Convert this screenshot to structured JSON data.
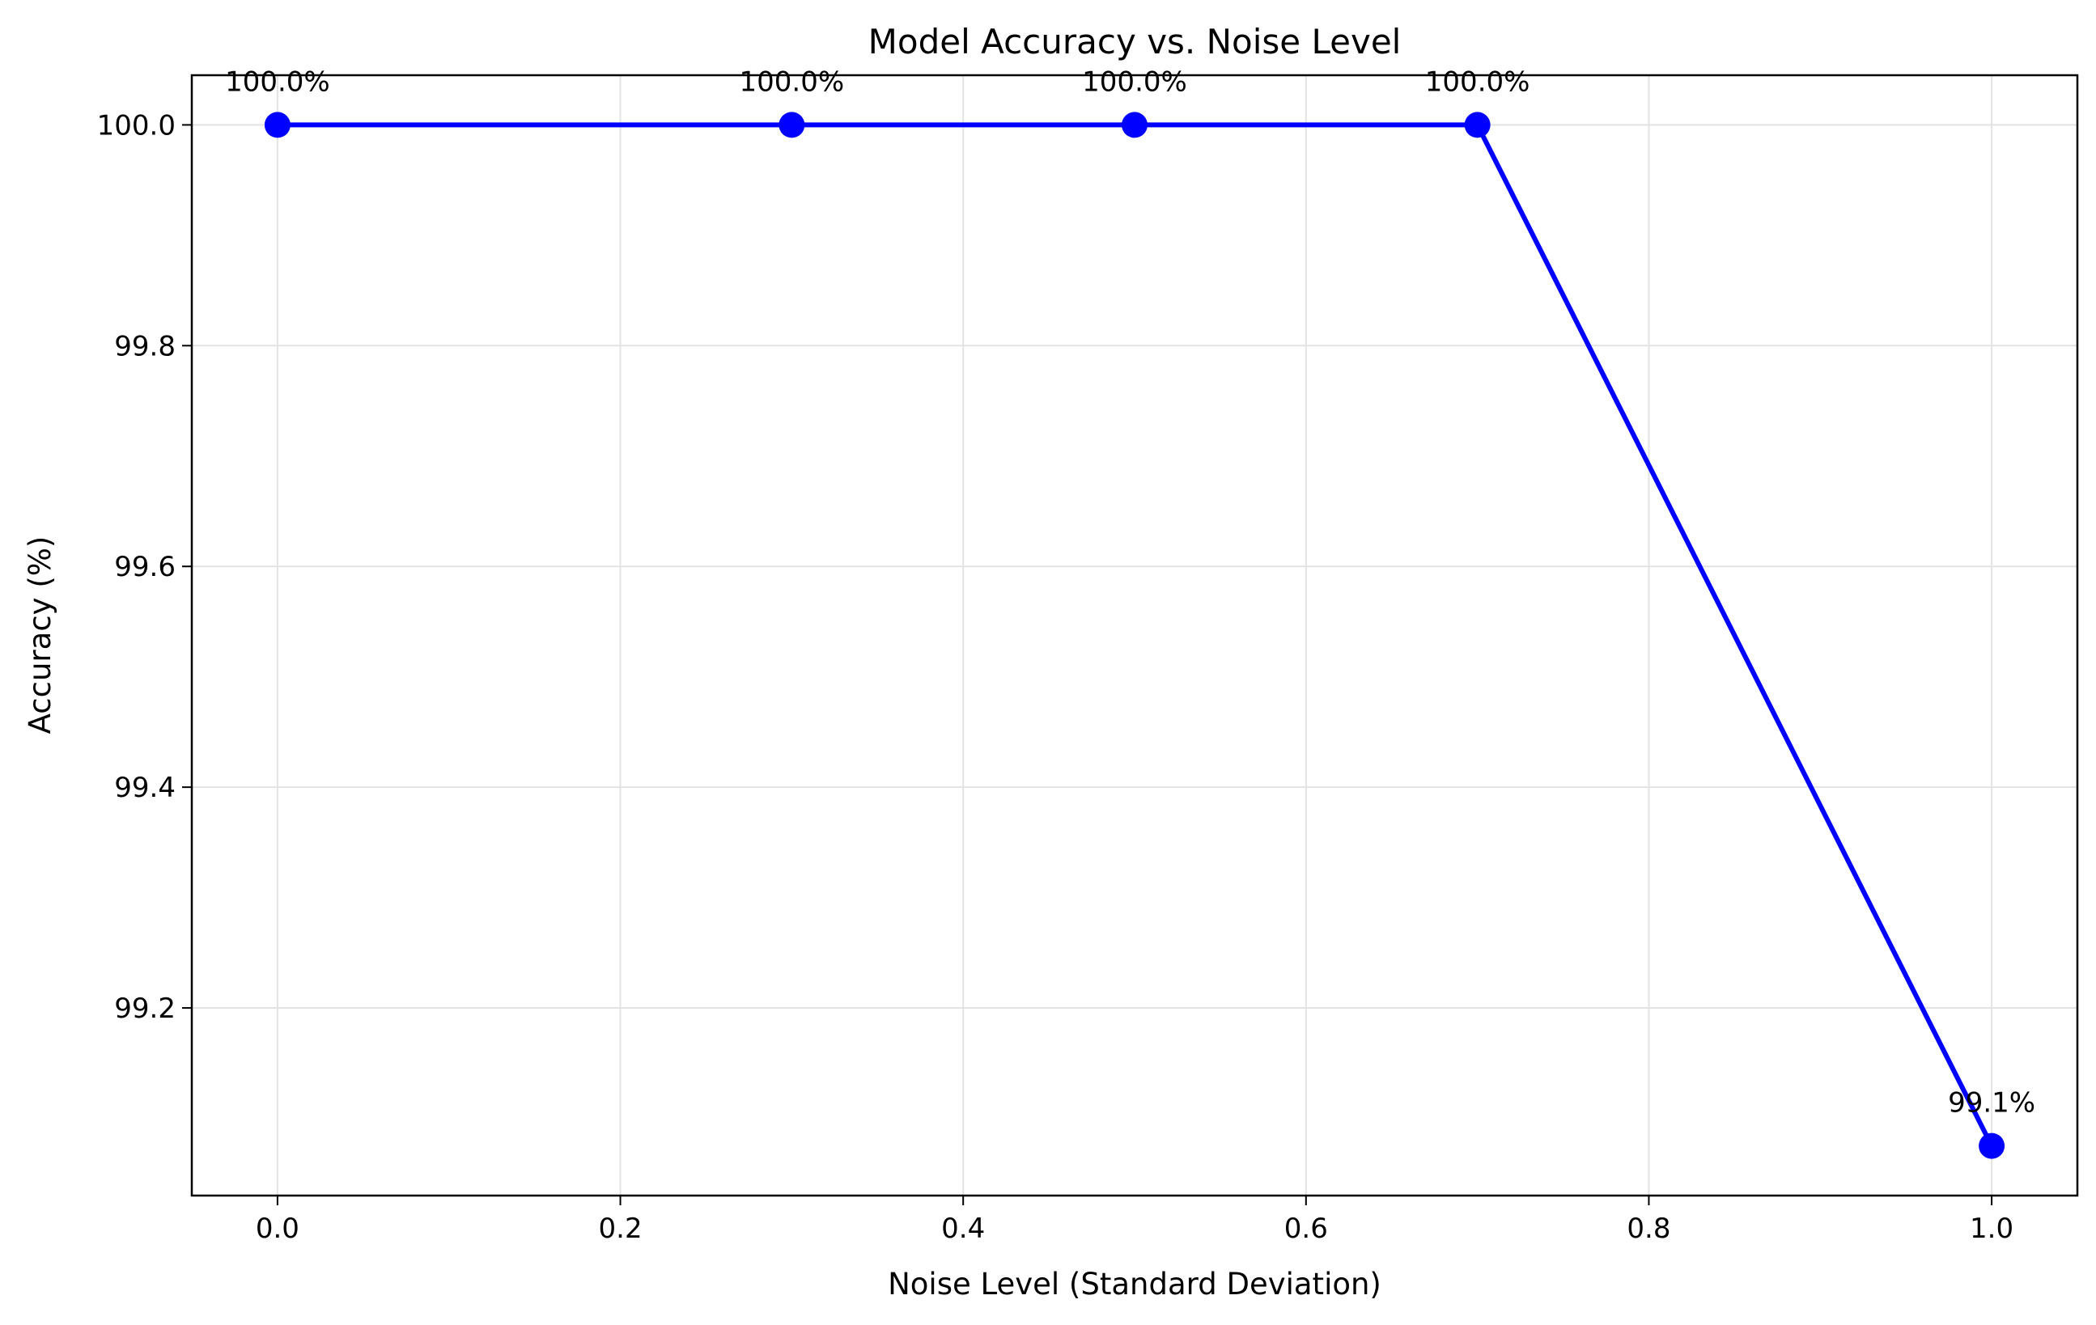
{
  "chart_data": {
    "type": "line",
    "title": "Model Accuracy vs. Noise Level",
    "xlabel": "Noise Level (Standard Deviation)",
    "ylabel": "Accuracy (%)",
    "xlim": [
      -0.05,
      1.05
    ],
    "ylim": [
      99.03,
      100.045
    ],
    "xticks": [
      0.0,
      0.2,
      0.4,
      0.6,
      0.8,
      1.0
    ],
    "xtick_labels": [
      "0.0",
      "0.2",
      "0.4",
      "0.6",
      "0.8",
      "1.0"
    ],
    "yticks": [
      99.2,
      99.4,
      99.6,
      99.8,
      100.0
    ],
    "ytick_labels": [
      "99.2",
      "99.4",
      "99.6",
      "99.8",
      "100.0"
    ],
    "grid": true,
    "legend": "none",
    "series": [
      {
        "color": "#0000ff",
        "marker": "circle",
        "x": [
          0.0,
          0.3,
          0.5,
          0.7,
          1.0
        ],
        "y": [
          100.0,
          100.0,
          100.0,
          100.0,
          99.075
        ]
      }
    ],
    "data_labels": [
      "100.0%",
      "100.0%",
      "100.0%",
      "100.0%",
      "99.1%"
    ]
  }
}
